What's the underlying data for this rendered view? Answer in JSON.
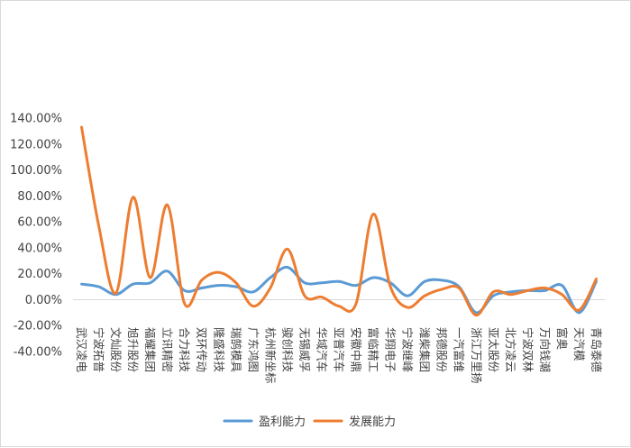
{
  "chart_data": {
    "type": "line",
    "smooth": true,
    "grid": false,
    "legend_position": "bottom",
    "title": "",
    "xlabel": "",
    "ylabel": "",
    "ylim": [
      -40,
      140
    ],
    "y_ticks": [
      "-40.00%",
      "-20.00%",
      "0.00%",
      "20.00%",
      "40.00%",
      "60.00%",
      "80.00%",
      "100.00%",
      "120.00%",
      "140.00%"
    ],
    "categories": [
      "武汉凌电",
      "宁波拓普",
      "文灿股份",
      "旭升股份",
      "福耀集团",
      "立讯精密",
      "合力科技",
      "双环传动",
      "隆盛科技",
      "瑞鹄模具",
      "广东鸿图",
      "杭州新坐标",
      "骏创科技",
      "无锡威孚",
      "华域汽车",
      "亚普汽车",
      "安徽中鼎",
      "富临精工",
      "华翔电子",
      "宁波继峰",
      "潍柴集团",
      "邦德股份",
      "一汽富维",
      "浙江万里扬",
      "亚太股份",
      "北方凌云",
      "宁波双林",
      "万向钱潮",
      "富奥",
      "天汽模",
      "青岛泰德"
    ],
    "series": [
      {
        "name": "盈利能力",
        "color": "#5b9bd5",
        "values": [
          12,
          10,
          4,
          12,
          13,
          22,
          7,
          9,
          11,
          10,
          6,
          17,
          25,
          13,
          13,
          14,
          11,
          17,
          13,
          3,
          14,
          15,
          10,
          -10,
          3,
          6,
          7,
          7,
          11,
          -10,
          14
        ]
      },
      {
        "name": "发展能力",
        "color": "#ed7d31",
        "values": [
          133,
          57,
          5,
          79,
          17,
          73,
          -3,
          15,
          21,
          13,
          -5,
          9,
          39,
          3,
          2,
          -5,
          -3,
          66,
          10,
          -6,
          3,
          8,
          9,
          -12,
          6,
          4,
          7,
          9,
          4,
          -8,
          16
        ]
      }
    ]
  }
}
